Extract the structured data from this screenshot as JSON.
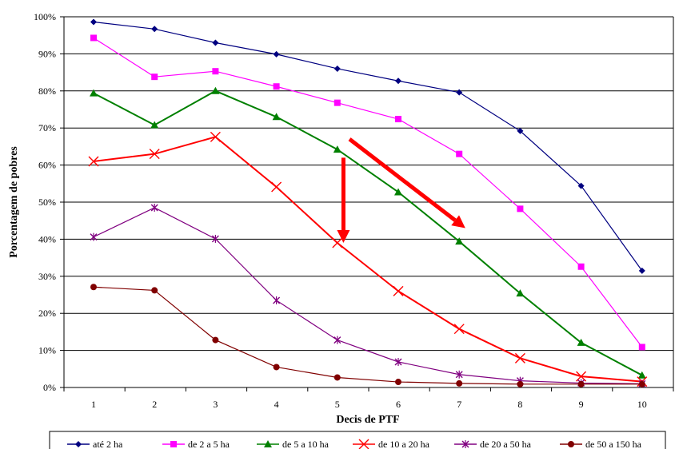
{
  "chart_data": {
    "type": "line",
    "title": "",
    "xlabel": "Decis de PTF",
    "ylabel": "Porcentagem de pobres",
    "x": [
      1,
      2,
      3,
      4,
      5,
      6,
      7,
      8,
      9,
      10
    ],
    "xlim": [
      1,
      10
    ],
    "ylim": [
      0,
      100
    ],
    "yticks": [
      "0%",
      "10%",
      "20%",
      "30%",
      "40%",
      "50%",
      "60%",
      "70%",
      "80%",
      "90%",
      "100%"
    ],
    "grid": "horizontal",
    "legend_position": "bottom",
    "series": [
      {
        "name": "até 2 ha",
        "color": "#000080",
        "marker": "diamond",
        "values": [
          98.6,
          96.7,
          93.0,
          89.9,
          86.0,
          82.7,
          79.6,
          69.2,
          54.4,
          31.5
        ]
      },
      {
        "name": "de 2 a 5 ha",
        "color": "#FF00FF",
        "marker": "square",
        "values": [
          94.3,
          83.8,
          85.3,
          81.2,
          76.8,
          72.4,
          63.0,
          48.2,
          32.6,
          10.9
        ]
      },
      {
        "name": "de 5 a 10 ha",
        "color": "#008000",
        "marker": "triangle",
        "values": [
          79.4,
          70.8,
          80.0,
          73.0,
          64.2,
          52.7,
          39.4,
          25.4,
          12.1,
          3.3
        ]
      },
      {
        "name": "de 10 a 20 ha",
        "color": "#FF0000",
        "marker": "x",
        "values": [
          61.0,
          63.0,
          67.6,
          54.1,
          39.0,
          26.0,
          15.8,
          7.9,
          3.0,
          1.6
        ]
      },
      {
        "name": "de 20 a 50 ha",
        "color": "#800080",
        "marker": "star",
        "values": [
          40.6,
          48.5,
          40.1,
          23.5,
          12.8,
          6.9,
          3.5,
          1.8,
          1.2,
          1.0
        ]
      },
      {
        "name": "de 50 a 150 ha",
        "color": "#800000",
        "marker": "circle",
        "values": [
          27.1,
          26.2,
          12.8,
          5.5,
          2.7,
          1.5,
          1.1,
          0.9,
          0.9,
          0.9
        ]
      }
    ],
    "annotations": [
      {
        "type": "arrow",
        "color": "#FF0000",
        "from": [
          5.2,
          67
        ],
        "to": [
          7.1,
          43
        ]
      },
      {
        "type": "arrow",
        "color": "#FF0000",
        "from": [
          5.1,
          62
        ],
        "to": [
          5.1,
          39
        ]
      }
    ]
  }
}
